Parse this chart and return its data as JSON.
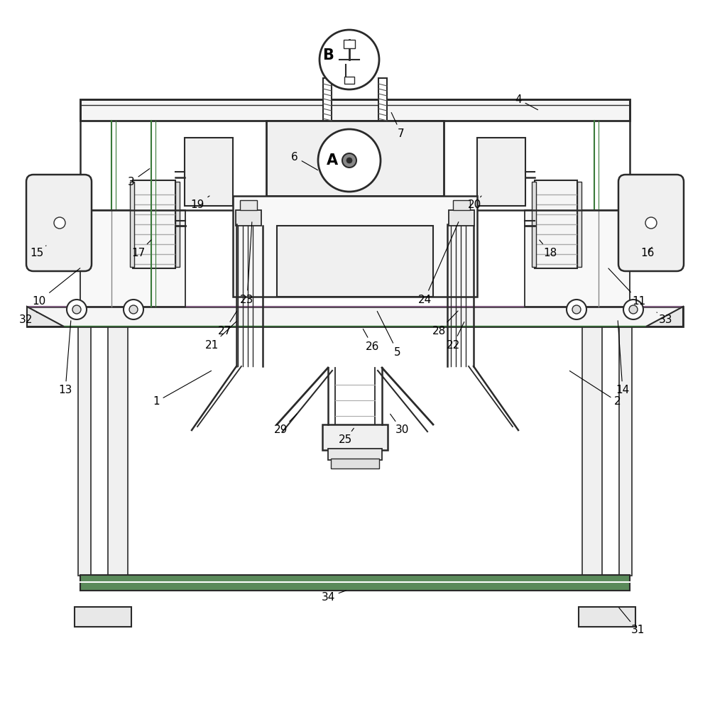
{
  "bg_color": "#ffffff",
  "lc": "#2a2a2a",
  "gc": "#3a7a3a",
  "pc": "#7a5a7a",
  "fig_width": 10.0,
  "fig_height": 9.96
}
